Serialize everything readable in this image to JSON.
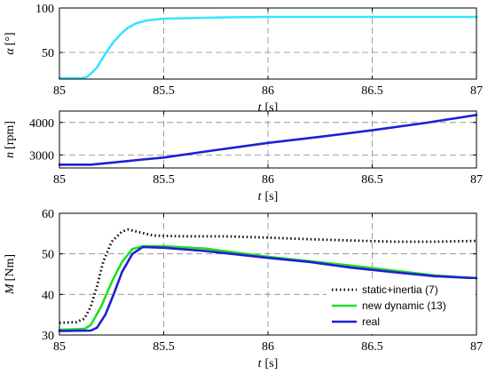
{
  "chart_data": [
    {
      "type": "line",
      "xlabel_italic": "t",
      "xlabel_unit": "[s]",
      "ylabel_italic": "α",
      "ylabel_unit": "[°]",
      "xlim": [
        85,
        87
      ],
      "ylim": [
        20,
        100
      ],
      "xticks": [
        "85",
        "85.5",
        "86",
        "86.5",
        "87"
      ],
      "yticks": [
        "50",
        "100"
      ],
      "grid": "dashed",
      "series": [
        {
          "color": "#33e6ff",
          "points": [
            [
              85.0,
              21
            ],
            [
              85.05,
              21
            ],
            [
              85.1,
              21
            ],
            [
              85.13,
              22
            ],
            [
              85.15,
              26
            ],
            [
              85.18,
              33
            ],
            [
              85.2,
              41
            ],
            [
              85.23,
              52
            ],
            [
              85.26,
              62
            ],
            [
              85.3,
              72
            ],
            [
              85.33,
              78
            ],
            [
              85.37,
              83
            ],
            [
              85.42,
              86
            ],
            [
              85.5,
              88
            ],
            [
              85.6,
              88.5
            ],
            [
              85.8,
              89.5
            ],
            [
              86.0,
              90
            ],
            [
              86.5,
              90
            ],
            [
              87.0,
              90
            ]
          ]
        }
      ]
    },
    {
      "type": "line",
      "xlabel_italic": "t",
      "xlabel_unit": "[s]",
      "ylabel_italic": "n",
      "ylabel_unit": "[rpm]",
      "xlim": [
        85,
        87
      ],
      "ylim": [
        2600,
        4350
      ],
      "xticks": [
        "85",
        "85.5",
        "86",
        "86.5",
        "87"
      ],
      "yticks": [
        "3000",
        "4000"
      ],
      "grid": "dashed",
      "series": [
        {
          "color": "#1f1fd6",
          "points": [
            [
              85.0,
              2700
            ],
            [
              85.15,
              2700
            ],
            [
              85.25,
              2760
            ],
            [
              85.4,
              2860
            ],
            [
              85.5,
              2920
            ],
            [
              85.75,
              3150
            ],
            [
              86.0,
              3370
            ],
            [
              86.25,
              3560
            ],
            [
              86.5,
              3760
            ],
            [
              86.75,
              3980
            ],
            [
              87.0,
              4230
            ]
          ]
        }
      ]
    },
    {
      "type": "line",
      "xlabel_italic": "t",
      "xlabel_unit": "[s]",
      "ylabel_italic": "M",
      "ylabel_unit": "[Nm]",
      "xlim": [
        85,
        87
      ],
      "ylim": [
        30,
        60
      ],
      "xticks": [
        "85",
        "85.5",
        "86",
        "86.5",
        "87"
      ],
      "yticks": [
        "30",
        "40",
        "50",
        "60"
      ],
      "grid": "dashed",
      "legend": "lower-right",
      "series": [
        {
          "name": "static+inertia (7)",
          "color": "#000000",
          "dash": "dotted",
          "points": [
            [
              85.0,
              33
            ],
            [
              85.08,
              33.2
            ],
            [
              85.12,
              34
            ],
            [
              85.15,
              37
            ],
            [
              85.18,
              42
            ],
            [
              85.21,
              48
            ],
            [
              85.25,
              53
            ],
            [
              85.3,
              55.5
            ],
            [
              85.33,
              56
            ],
            [
              85.37,
              55.5
            ],
            [
              85.45,
              54.5
            ],
            [
              85.6,
              54.3
            ],
            [
              85.8,
              54.3
            ],
            [
              86.0,
              54
            ],
            [
              86.2,
              53.6
            ],
            [
              86.4,
              53.3
            ],
            [
              86.6,
              53
            ],
            [
              86.8,
              53
            ],
            [
              87.0,
              53.2
            ]
          ]
        },
        {
          "name": "new dynamic (13)",
          "color": "#22dd22",
          "points": [
            [
              85.0,
              31.3
            ],
            [
              85.12,
              31.5
            ],
            [
              85.15,
              32.5
            ],
            [
              85.2,
              37
            ],
            [
              85.25,
              43
            ],
            [
              85.3,
              48
            ],
            [
              85.35,
              51.2
            ],
            [
              85.4,
              51.9
            ],
            [
              85.5,
              51.9
            ],
            [
              85.7,
              51.3
            ],
            [
              86.0,
              49.3
            ],
            [
              86.2,
              48.2
            ],
            [
              86.4,
              47.1
            ],
            [
              86.6,
              45.9
            ],
            [
              86.8,
              44.7
            ],
            [
              87.0,
              44
            ]
          ]
        },
        {
          "name": "real",
          "color": "#1f1fd6",
          "points": [
            [
              85.0,
              31
            ],
            [
              85.15,
              31.1
            ],
            [
              85.18,
              31.8
            ],
            [
              85.22,
              35
            ],
            [
              85.26,
              40
            ],
            [
              85.3,
              45.5
            ],
            [
              85.35,
              50
            ],
            [
              85.4,
              51.7
            ],
            [
              85.5,
              51.5
            ],
            [
              85.7,
              50.7
            ],
            [
              86.0,
              49
            ],
            [
              86.2,
              48
            ],
            [
              86.4,
              46.6
            ],
            [
              86.6,
              45.5
            ],
            [
              86.8,
              44.5
            ],
            [
              87.0,
              44
            ]
          ]
        }
      ]
    }
  ]
}
